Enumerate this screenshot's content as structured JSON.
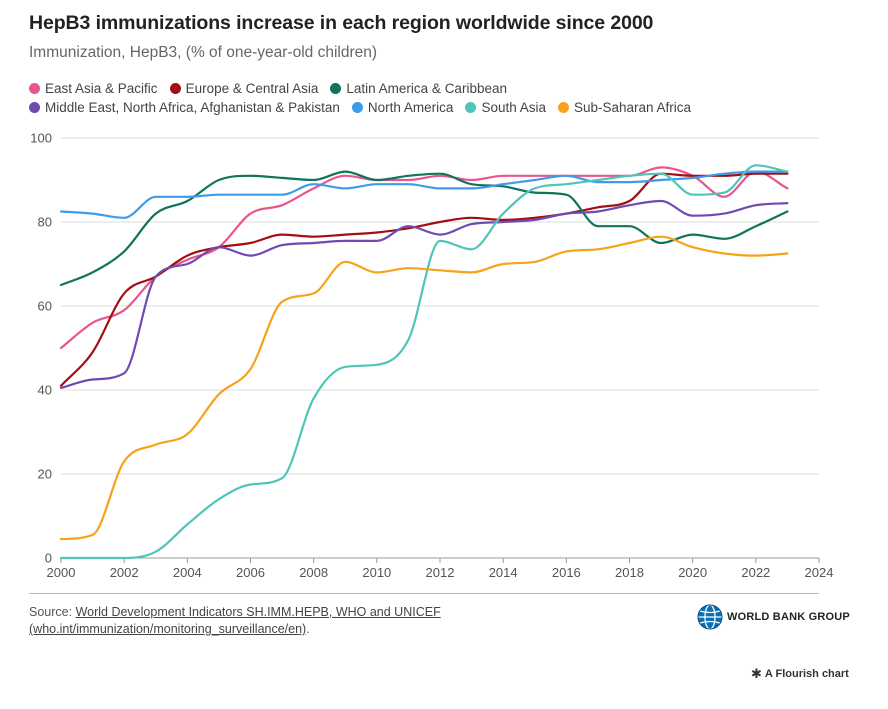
{
  "title": "HepB3 immunizations increase in each region worldwide since 2000",
  "subtitle": "Immunization, HepB3, (% of one-year-old children)",
  "source": {
    "prefix": "Source: ",
    "link1": "World Development Indicators SH.IMM.HEPB, WHO and UNICEF",
    "link2": "(who.int/immunization/monitoring_surveillance/en)",
    "suffix": "."
  },
  "brand": {
    "name": "WORLD BANK GROUP",
    "icon": "world-bank-globe-icon"
  },
  "credit": {
    "icon": "flourish-star-icon",
    "text": "A Flourish chart"
  },
  "chart_data": {
    "type": "line",
    "title": "HepB3 immunizations increase in each region worldwide since 2000",
    "xlabel": "",
    "ylabel": "",
    "xlim": [
      2000,
      2024
    ],
    "ylim": [
      0,
      100
    ],
    "xticks": [
      2000,
      2002,
      2004,
      2006,
      2008,
      2010,
      2012,
      2014,
      2016,
      2018,
      2020,
      2022,
      2024
    ],
    "yticks": [
      0,
      20,
      40,
      60,
      80,
      100
    ],
    "grid": "horizontal",
    "legend": "top",
    "x": [
      2000,
      2001,
      2002,
      2003,
      2004,
      2005,
      2006,
      2007,
      2008,
      2009,
      2010,
      2011,
      2012,
      2013,
      2014,
      2015,
      2016,
      2017,
      2018,
      2019,
      2020,
      2021,
      2022,
      2023
    ],
    "series": [
      {
        "name": "East Asia & Pacific",
        "color": "#e8558f",
        "values": [
          50,
          56,
          59,
          67,
          71,
          74,
          82,
          84,
          88,
          91,
          90,
          90,
          91,
          90,
          91,
          91,
          91,
          91,
          91,
          93,
          91,
          86,
          92,
          88
        ]
      },
      {
        "name": "Europe & Central Asia",
        "color": "#a10f12",
        "values": [
          41,
          49,
          63,
          67,
          72,
          74,
          75,
          77,
          76.5,
          77,
          77.5,
          78.5,
          80,
          81,
          80.5,
          81,
          82,
          83.5,
          85,
          91.5,
          91,
          91,
          91.5,
          91.5
        ]
      },
      {
        "name": "Latin America & Caribbean",
        "color": "#10735c",
        "values": [
          65,
          68,
          73,
          82,
          85,
          90,
          91,
          90.5,
          90,
          92,
          90,
          91,
          91.5,
          89,
          88.5,
          87,
          86.5,
          79,
          79,
          75,
          77,
          76,
          79,
          82.5
        ]
      },
      {
        "name": "Middle East, North Africa, Afghanistan & Pakistan",
        "color": "#6f4ab2",
        "values": [
          40.5,
          42.5,
          44,
          67,
          70,
          74,
          72,
          74.5,
          75,
          75.5,
          75.5,
          79,
          77,
          79.5,
          80,
          80.5,
          82,
          82.5,
          84,
          85,
          81.5,
          82,
          84,
          84.5
        ]
      },
      {
        "name": "North America",
        "color": "#3d9be9",
        "values": [
          82.5,
          82,
          81,
          86,
          86,
          86.5,
          86.5,
          86.5,
          89,
          88,
          89,
          89,
          88,
          88,
          89,
          90,
          91,
          89.5,
          89.5,
          90,
          90.5,
          91.5,
          92,
          92
        ]
      },
      {
        "name": "South Asia",
        "color": "#4fc4b8",
        "values": [
          0,
          0,
          0,
          1.5,
          8,
          14,
          17.5,
          19,
          38,
          45.5,
          46,
          52,
          75.5,
          73.5,
          82,
          88,
          89,
          90,
          91,
          91.5,
          86.5,
          87,
          93.5,
          92
        ]
      },
      {
        "name": "Sub-Saharan Africa",
        "color": "#f5a31a",
        "values": [
          4.5,
          5.5,
          23,
          27,
          29.5,
          39,
          45,
          61,
          63,
          70.5,
          68,
          69,
          68.5,
          68,
          70,
          70.5,
          73,
          73.5,
          75,
          76.5,
          74,
          72.5,
          72,
          72.5
        ]
      }
    ]
  }
}
